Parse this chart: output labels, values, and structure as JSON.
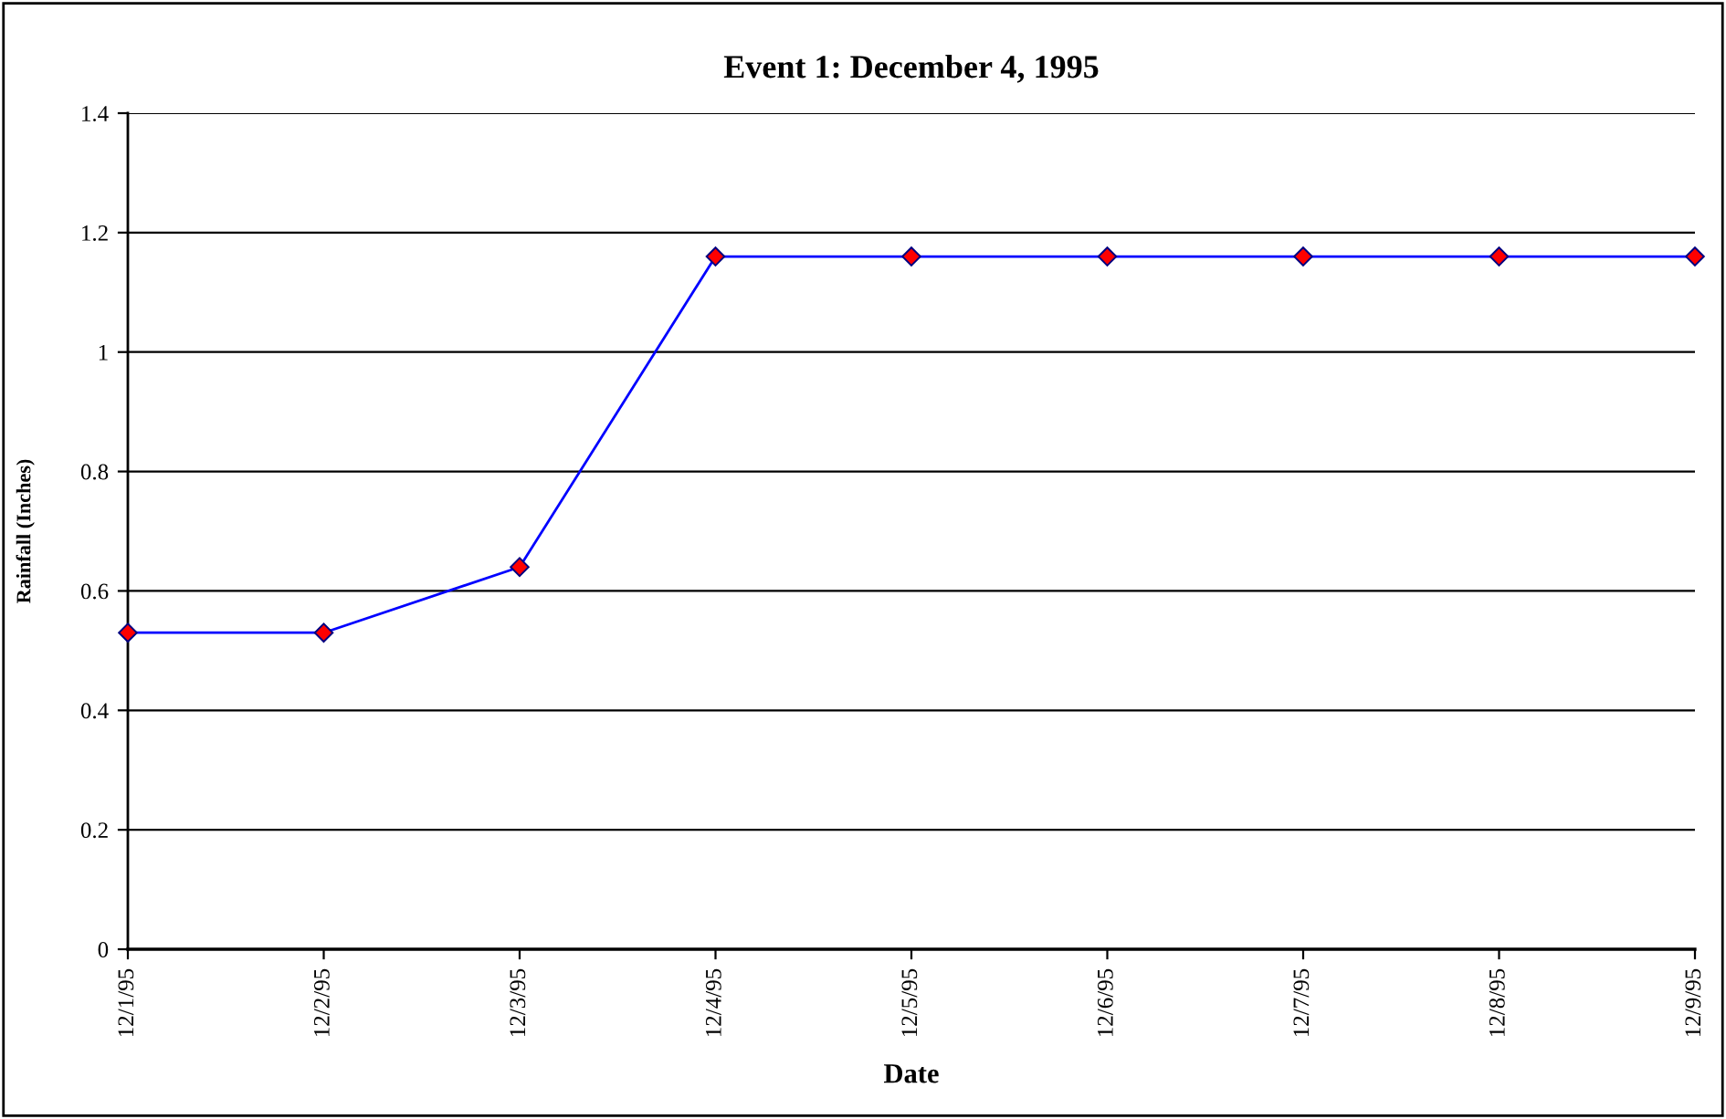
{
  "chart_data": {
    "type": "line",
    "title": "Event 1: December 4, 1995",
    "xlabel": "Date",
    "ylabel": "Rainfall (Inches)",
    "categories": [
      "12/1/95",
      "12/2/95",
      "12/3/95",
      "12/4/95",
      "12/5/95",
      "12/6/95",
      "12/7/95",
      "12/8/95",
      "12/9/95"
    ],
    "series": [
      {
        "color": "#0000ff",
        "values": [
          0.53,
          0.53,
          0.64,
          1.16,
          1.16,
          1.16,
          1.16,
          1.16,
          1.16
        ]
      }
    ],
    "ylim": [
      0,
      1.4
    ],
    "yticks": [
      0,
      {
        "value": 0.2,
        "label": "0.2"
      },
      {
        "value": 0.4,
        "label": "0.4"
      },
      {
        "value": 0.6,
        "label": "0.6"
      },
      {
        "value": 0.8,
        "label": "0.8"
      },
      1,
      {
        "value": 1.2,
        "label": "1.2"
      },
      {
        "value": 1.4,
        "label": "1.4"
      }
    ],
    "grid": "y",
    "marker": "diamond",
    "line_style": "solid",
    "legend": false
  }
}
